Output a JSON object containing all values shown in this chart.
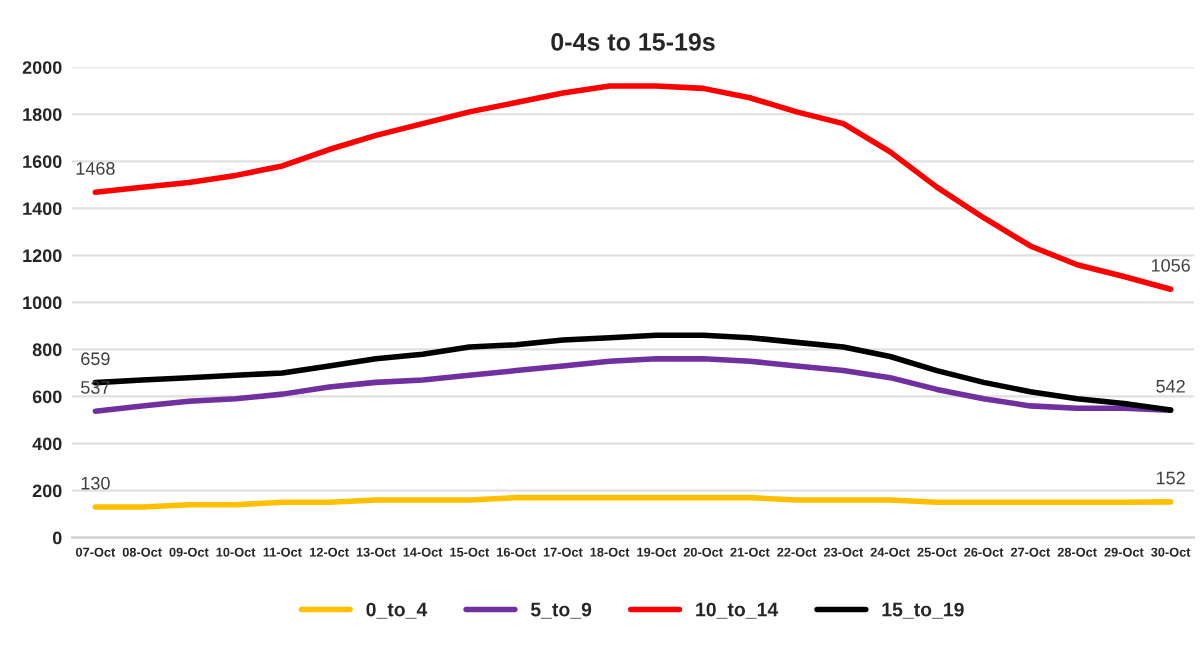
{
  "chart_data": {
    "type": "line",
    "title": "0-4s to 15-19s",
    "categories": [
      "07-Oct",
      "08-Oct",
      "09-Oct",
      "10-Oct",
      "11-Oct",
      "12-Oct",
      "13-Oct",
      "14-Oct",
      "15-Oct",
      "16-Oct",
      "17-Oct",
      "18-Oct",
      "19-Oct",
      "20-Oct",
      "21-Oct",
      "22-Oct",
      "23-Oct",
      "24-Oct",
      "25-Oct",
      "26-Oct",
      "27-Oct",
      "28-Oct",
      "29-Oct",
      "30-Oct"
    ],
    "series": [
      {
        "name": "0_to_4",
        "color": "#ffc000",
        "values": [
          130,
          130,
          140,
          140,
          150,
          150,
          160,
          160,
          160,
          170,
          170,
          170,
          170,
          170,
          170,
          160,
          160,
          160,
          150,
          150,
          150,
          150,
          150,
          152
        ],
        "value_labels": [
          "130",
          null,
          null,
          null,
          null,
          null,
          null,
          null,
          null,
          null,
          null,
          null,
          null,
          null,
          null,
          null,
          null,
          null,
          null,
          null,
          null,
          null,
          null,
          "152"
        ]
      },
      {
        "name": "5_to_9",
        "color": "#7030a0",
        "values": [
          537,
          560,
          580,
          590,
          610,
          640,
          660,
          670,
          690,
          710,
          730,
          750,
          760,
          760,
          750,
          730,
          710,
          680,
          630,
          590,
          560,
          550,
          550,
          542
        ],
        "value_labels": [
          "537",
          null,
          null,
          null,
          null,
          null,
          null,
          null,
          null,
          null,
          null,
          null,
          null,
          null,
          null,
          null,
          null,
          null,
          null,
          null,
          null,
          null,
          null,
          null
        ]
      },
      {
        "name": "10_to_14",
        "color": "#ff0000",
        "values": [
          1468,
          1490,
          1510,
          1540,
          1580,
          1650,
          1710,
          1760,
          1810,
          1850,
          1890,
          1920,
          1920,
          1910,
          1870,
          1810,
          1760,
          1640,
          1490,
          1360,
          1240,
          1160,
          1110,
          1056
        ],
        "value_labels": [
          "1468",
          null,
          null,
          null,
          null,
          null,
          null,
          null,
          null,
          null,
          null,
          null,
          null,
          null,
          null,
          null,
          null,
          null,
          null,
          null,
          null,
          null,
          null,
          "1056"
        ]
      },
      {
        "name": "15_to_19",
        "color": "#000000",
        "values": [
          659,
          670,
          680,
          690,
          700,
          730,
          760,
          780,
          810,
          820,
          840,
          850,
          860,
          860,
          850,
          830,
          810,
          770,
          710,
          660,
          620,
          590,
          570,
          542
        ],
        "value_labels": [
          "659",
          null,
          null,
          null,
          null,
          null,
          null,
          null,
          null,
          null,
          null,
          null,
          null,
          null,
          null,
          null,
          null,
          null,
          null,
          null,
          null,
          null,
          null,
          "542"
        ]
      }
    ],
    "ylim": [
      0,
      2000
    ],
    "yticks": [
      0,
      200,
      400,
      600,
      800,
      1000,
      1200,
      1400,
      1600,
      1800,
      2000
    ],
    "grid": "y",
    "legend": "bottom",
    "marker": "none",
    "line_style": "solid"
  }
}
